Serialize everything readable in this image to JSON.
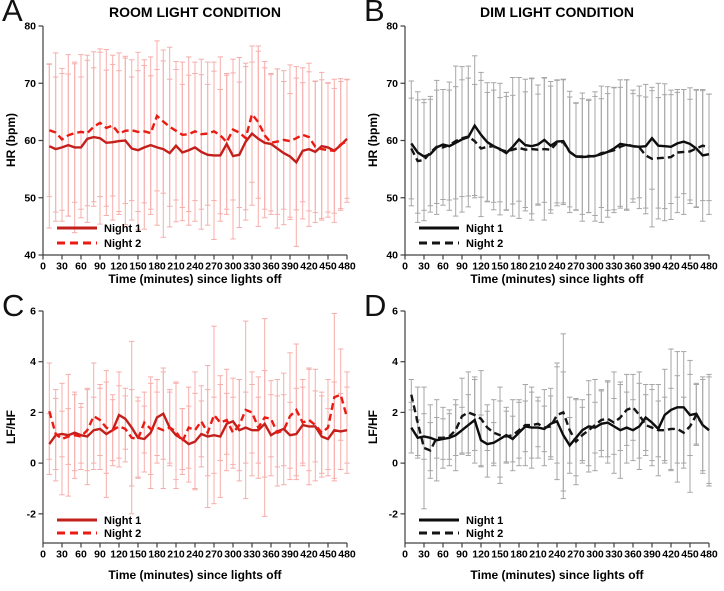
{
  "figure": {
    "background": "#ffffff"
  },
  "x_minutes": [
    10,
    20,
    30,
    40,
    50,
    60,
    70,
    80,
    90,
    100,
    110,
    120,
    130,
    140,
    150,
    160,
    170,
    180,
    190,
    200,
    210,
    220,
    230,
    240,
    250,
    260,
    270,
    280,
    290,
    300,
    310,
    320,
    330,
    340,
    350,
    360,
    370,
    380,
    390,
    400,
    410,
    420,
    430,
    440,
    450,
    460,
    470,
    480
  ],
  "xticks": [
    0,
    30,
    60,
    90,
    120,
    150,
    180,
    210,
    240,
    270,
    300,
    330,
    360,
    390,
    420,
    450,
    480
  ],
  "chart_data": [
    {
      "type": "line",
      "panel": "A",
      "title": "ROOM LIGHT CONDITION",
      "xlabel": "Time (minutes) since lights off",
      "ylabel": "HR (bpm)",
      "ylim": [
        40,
        80
      ],
      "yticks": [
        40,
        50,
        60,
        70,
        80
      ],
      "grid": false,
      "legend_position": "bottom-left",
      "colors": {
        "error_bar": "#f6aeab",
        "axis": "#404040"
      },
      "series": [
        {
          "name": "Night 1",
          "line_style": "solid",
          "color": "#c3201c",
          "values": [
            59.0,
            58.5,
            58.8,
            59.2,
            58.8,
            58.8,
            60.3,
            60.6,
            60.4,
            59.6,
            59.7,
            59.9,
            60.0,
            58.6,
            58.3,
            58.8,
            59.2,
            58.8,
            58.5,
            57.8,
            59.1,
            57.9,
            58.3,
            58.8,
            58.0,
            57.5,
            57.4,
            57.4,
            59.4,
            57.3,
            57.5,
            59.8,
            61.2,
            60.3,
            59.6,
            59.4,
            58.6,
            57.8,
            57.2,
            56.2,
            58.2,
            58.5,
            58.0,
            59.0,
            58.8,
            58.2,
            59.2,
            60.3
          ],
          "err": [
            14.3,
            12.6,
            12.9,
            12.4,
            14.9,
            12.3,
            14.6,
            12.1,
            15.0,
            12.7,
            13.6,
            12.3,
            14.7,
            12.5,
            13.9,
            14.3,
            12.1,
            13.6,
            15.4,
            12.9,
            13.3,
            11.9,
            13.1,
            12.9,
            13.5,
            12.3,
            14.7,
            11.5,
            12.3,
            14.5,
            12.7,
            13.7,
            12.5,
            15.3,
            13.1,
            12.3,
            13.9,
            12.5,
            11.0,
            14.7,
            11.9,
            13.5,
            12.3,
            12.9,
            11.3,
            12.5,
            11.1,
            10.4
          ]
        },
        {
          "name": "Night 2",
          "line_style": "dashed",
          "color": "#ea1b13",
          "values": [
            61.8,
            61.4,
            60.2,
            60.9,
            61.3,
            61.5,
            61.3,
            62.4,
            63.1,
            62.2,
            62.6,
            61.2,
            61.7,
            61.8,
            61.5,
            61.6,
            61.3,
            64.3,
            63.3,
            62.4,
            61.7,
            61.0,
            61.1,
            61.6,
            61.1,
            61.2,
            61.6,
            60.9,
            59.7,
            61.9,
            61.4,
            60.4,
            64.6,
            63.2,
            60.9,
            59.6,
            59.8,
            60.1,
            59.9,
            60.4,
            61.0,
            60.6,
            58.9,
            58.5,
            58.3,
            58.2,
            59.3,
            59.9
          ],
          "err": [
            11.6,
            13.9,
            12.4,
            14.1,
            12.1,
            13.5,
            12.7,
            13.1,
            12.9,
            13.7,
            12.3,
            14.1,
            12.7,
            12.3,
            13.9,
            12.5,
            13.3,
            13.1,
            12.5,
            13.9,
            12.1,
            12.7,
            13.5,
            12.1,
            13.1,
            12.5,
            12.1,
            13.7,
            11.7,
            12.3,
            13.1,
            12.5,
            11.9,
            13.3,
            12.9,
            11.9,
            12.7,
            12.1,
            13.3,
            12.5,
            11.7,
            12.9,
            11.5,
            12.1,
            11.7,
            10.9,
            11.5,
            10.7
          ]
        }
      ]
    },
    {
      "type": "line",
      "panel": "B",
      "title": "DIM LIGHT CONDITION",
      "xlabel": "Time (minutes) since lights off",
      "ylabel": "HR (bpm)",
      "ylim": [
        40,
        80
      ],
      "yticks": [
        40,
        50,
        60,
        70,
        80
      ],
      "grid": false,
      "legend_position": "bottom-left",
      "colors": {
        "error_bar": "#a6a6a6",
        "axis": "#404040"
      },
      "series": [
        {
          "name": "Night 1",
          "line_style": "solid",
          "color": "#0d0d0d",
          "values": [
            59.5,
            57.9,
            57.2,
            57.6,
            58.8,
            59.3,
            59.0,
            59.6,
            60.2,
            60.6,
            62.6,
            61.0,
            59.7,
            59.0,
            58.5,
            57.8,
            58.9,
            60.2,
            59.2,
            59.0,
            59.3,
            60.1,
            59.1,
            59.8,
            59.9,
            58.0,
            57.2,
            57.1,
            57.2,
            57.3,
            57.6,
            58.0,
            58.6,
            59.4,
            59.2,
            59.0,
            58.9,
            59.0,
            60.4,
            59.1,
            59.0,
            58.9,
            59.5,
            59.8,
            59.4,
            58.6,
            57.4,
            57.6
          ],
          "err": [
            10.9,
            10.6,
            9.4,
            10.1,
            11.7,
            9.6,
            11.2,
            9.8,
            12.7,
            10.3,
            12.2,
            10.9,
            10.4,
            9.8,
            11.5,
            9.9,
            12.1,
            10.8,
            11.5,
            11.8,
            10.4,
            10.9,
            11.2,
            10.7,
            10.8,
            9.6,
            9.4,
            11.2,
            9.8,
            10.4,
            11.9,
            10.2,
            10.7,
            11.2,
            11.4,
            9.8,
            8.9,
            10.8,
            8.9,
            10.9,
            10.9,
            9.9,
            9.4,
            9.1,
            9.8,
            10.2,
            11.5,
            10.5
          ]
        },
        {
          "name": "Night 2",
          "line_style": "dashed",
          "color": "#141414",
          "values": [
            58.6,
            56.4,
            56.6,
            57.9,
            58.9,
            58.8,
            59.2,
            59.9,
            60.4,
            60.7,
            59.9,
            58.6,
            58.9,
            59.0,
            58.4,
            58.1,
            58.4,
            58.7,
            58.4,
            58.5,
            58.4,
            58.5,
            58.4,
            59.6,
            59.7,
            58.0,
            57.2,
            57.2,
            57.3,
            57.2,
            57.8,
            58.0,
            58.3,
            58.9,
            59.3,
            59.0,
            58.8,
            57.4,
            56.8,
            56.9,
            57.0,
            57.1,
            57.9,
            58.0,
            58.1,
            58.6,
            59.1,
            58.8
          ],
          "err": [
            8.8,
            10.7,
            10.6,
            9.3,
            9.9,
            10.1,
            9.6,
            13.1,
            10.2,
            12.3,
            9.9,
            11.9,
            9.5,
            11.1,
            9.1,
            10.3,
            9.5,
            12.3,
            10.1,
            12.4,
            9.7,
            12.4,
            11.1,
            11.0,
            10.9,
            10.6,
            9.3,
            10.1,
            9.9,
            11.3,
            9.5,
            11.4,
            10.9,
            10.4,
            11.3,
            9.2,
            10.7,
            10.2,
            11.9,
            10.6,
            11.0,
            10.9,
            10.5,
            10.9,
            9.1,
            10.3,
            9.6,
            9.3
          ]
        }
      ]
    },
    {
      "type": "line",
      "panel": "C",
      "title": "",
      "xlabel": "Time (minutes) since lights off",
      "ylabel": "LF/HF",
      "ylim": [
        -3.15,
        6
      ],
      "yticks": [
        -2,
        0,
        2,
        4,
        6
      ],
      "grid": false,
      "legend_position": "bottom-left",
      "colors": {
        "error_bar": "#f6aeab",
        "axis": "#404040"
      },
      "series": [
        {
          "name": "Night 1",
          "line_style": "solid",
          "color": "#c3201c",
          "values": [
            0.75,
            1.1,
            1.15,
            1.1,
            1.2,
            1.1,
            1.05,
            1.3,
            1.35,
            1.15,
            1.3,
            1.9,
            1.75,
            1.4,
            1.0,
            0.95,
            1.2,
            1.8,
            1.95,
            1.4,
            1.1,
            0.95,
            0.75,
            0.85,
            1.15,
            1.05,
            1.1,
            1.05,
            1.55,
            1.65,
            1.3,
            1.4,
            1.3,
            1.3,
            1.55,
            1.1,
            1.25,
            1.35,
            1.1,
            1.15,
            1.5,
            1.45,
            1.45,
            1.05,
            0.95,
            1.3,
            1.25,
            1.3
          ],
          "err": [
            1.2,
            1.8,
            0.9,
            2.4,
            1.5,
            1.1,
            1.9,
            1.3,
            1.6,
            2.5,
            1.4,
            1.7,
            1.2,
            3.4,
            1.6,
            1.3,
            2.2,
            1.5,
            1.8,
            1.4,
            2.1,
            1.2,
            1.5,
            1.9,
            1.3,
            2.8,
            1.5,
            2.4,
            1.2,
            1.7,
            2.0,
            1.4,
            1.8,
            1.3,
            2.1,
            1.6,
            1.4,
            2.2,
            1.3,
            1.8,
            1.5,
            2.3,
            1.4,
            1.6,
            1.2,
            1.9,
            1.5,
            1.7
          ]
        },
        {
          "name": "Night 2",
          "line_style": "dashed",
          "color": "#ea1b13",
          "values": [
            2.05,
            1.15,
            0.95,
            1.05,
            1.1,
            1.05,
            1.3,
            1.85,
            1.7,
            1.4,
            1.3,
            1.45,
            1.35,
            1.0,
            0.95,
            1.6,
            1.35,
            1.4,
            1.3,
            1.4,
            1.25,
            0.85,
            1.4,
            1.3,
            1.65,
            1.2,
            1.9,
            1.6,
            1.7,
            1.2,
            1.5,
            2.1,
            2.0,
            1.4,
            1.8,
            1.75,
            1.2,
            1.3,
            1.85,
            2.1,
            1.6,
            1.7,
            1.5,
            1.2,
            1.4,
            2.6,
            2.7,
            1.8
          ],
          "err": [
            1.9,
            1.4,
            2.2,
            1.1,
            1.7,
            1.3,
            1.6,
            2.1,
            1.4,
            1.8,
            1.2,
            1.6,
            1.3,
            1.9,
            1.5,
            1.2,
            1.8,
            1.4,
            2.3,
            1.5,
            1.9,
            1.3,
            1.6,
            2.3,
            1.4,
            1.7,
            3.5,
            1.5,
            2.0,
            1.4,
            1.8,
            3.5,
            1.6,
            2.0,
            3.9,
            1.5,
            2.1,
            1.4,
            2.5,
            2.6,
            1.7,
            2.0,
            2.2,
            1.6,
            1.9,
            3.3,
            1.8,
            1.8
          ]
        }
      ]
    },
    {
      "type": "line",
      "panel": "D",
      "title": "",
      "xlabel": "Time (minutes) since lights off",
      "ylabel": "LF/HF",
      "ylim": [
        -3.15,
        6
      ],
      "yticks": [
        -2,
        0,
        2,
        4,
        6
      ],
      "grid": false,
      "legend_position": "bottom-left",
      "colors": {
        "error_bar": "#a6a6a6",
        "axis": "#404040"
      },
      "series": [
        {
          "name": "Night 1",
          "line_style": "solid",
          "color": "#0d0d0d",
          "values": [
            1.4,
            1.0,
            1.05,
            1.0,
            0.9,
            0.95,
            1.0,
            1.1,
            1.3,
            1.5,
            1.7,
            0.9,
            0.75,
            0.8,
            0.95,
            1.1,
            0.95,
            1.2,
            1.45,
            1.4,
            1.4,
            1.35,
            1.55,
            1.65,
            1.1,
            0.7,
            1.0,
            1.3,
            1.45,
            1.4,
            1.55,
            1.6,
            1.45,
            1.3,
            1.4,
            1.3,
            1.45,
            1.8,
            1.6,
            1.35,
            1.9,
            2.1,
            2.2,
            2.2,
            1.9,
            1.95,
            1.5,
            1.3
          ],
          "err": [
            1.0,
            0.7,
            0.9,
            1.3,
            1.6,
            0.8,
            1.1,
            1.4,
            0.9,
            1.2,
            1.7,
            1.0,
            1.3,
            0.8,
            1.5,
            1.1,
            0.9,
            1.3,
            1.0,
            1.6,
            1.2,
            0.9,
            1.4,
            2.3,
            2.5,
            1.1,
            1.5,
            1.2,
            1.8,
            1.0,
            1.3,
            1.6,
            1.1,
            1.9,
            1.4,
            1.2,
            1.7,
            1.3,
            1.5,
            1.1,
            1.8,
            2.4,
            2.2,
            2.2,
            1.6,
            1.2,
            1.9,
            2.2
          ]
        },
        {
          "name": "Night 2",
          "line_style": "dashed",
          "color": "#141414",
          "values": [
            2.7,
            1.6,
            0.6,
            0.5,
            1.0,
            1.0,
            1.05,
            1.3,
            1.85,
            2.0,
            1.9,
            1.75,
            1.4,
            1.2,
            1.1,
            1.05,
            1.1,
            1.3,
            1.5,
            1.5,
            1.55,
            1.4,
            1.45,
            1.9,
            2.0,
            1.3,
            0.85,
            1.1,
            1.3,
            1.5,
            1.7,
            1.75,
            1.6,
            1.8,
            2.1,
            2.2,
            1.9,
            1.5,
            1.4,
            1.3,
            1.3,
            1.35,
            1.35,
            1.2,
            1.45,
            1.9,
            1.5,
            1.3
          ],
          "err": [
            0.6,
            1.4,
            2.4,
            1.1,
            0.8,
            1.2,
            0.9,
            1.0,
            1.5,
            1.6,
            1.4,
            1.9,
            0.9,
            1.3,
            1.9,
            1.0,
            1.4,
            1.1,
            1.6,
            1.3,
            0.9,
            1.5,
            1.2,
            1.9,
            3.1,
            1.3,
            1.7,
            1.1,
            1.4,
            1.8,
            1.2,
            1.5,
            2.0,
            1.3,
            1.4,
            1.3,
            1.7,
            1.2,
            1.5,
            1.8,
            1.3,
            1.6,
            2.1,
            1.4,
            2.6,
            1.2,
            1.8,
            2.1
          ]
        }
      ]
    }
  ]
}
